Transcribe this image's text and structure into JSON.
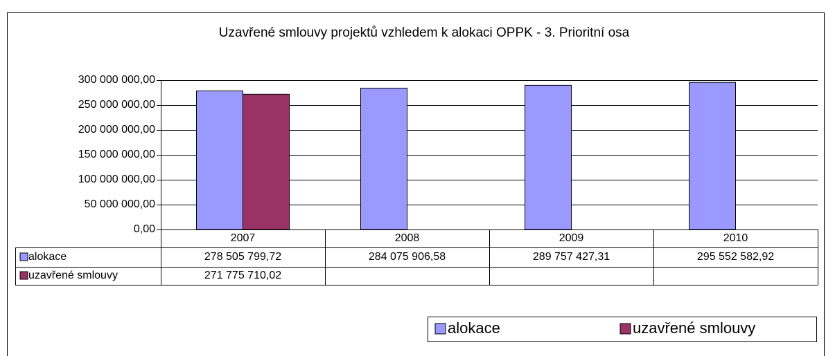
{
  "chart_data": {
    "type": "bar",
    "title": "Uzavřené smlouvy projektů vzhledem k alokaci OPPK - 3. Prioritní osa",
    "categories": [
      "2007",
      "2008",
      "2009",
      "2010"
    ],
    "series": [
      {
        "name": "alokace",
        "color": "#9999ff",
        "values": [
          278505799.72,
          284075906.58,
          289757427.31,
          295552582.92
        ],
        "value_labels": [
          "278 505 799,72",
          "284 075 906,58",
          "289 757 427,31",
          "295 552 582,92"
        ]
      },
      {
        "name": "uzavřené smlouvy",
        "color": "#993366",
        "values": [
          271775710.02,
          null,
          null,
          null
        ],
        "value_labels": [
          "271 775 710,02",
          null,
          null,
          null
        ]
      }
    ],
    "ylim": [
      0,
      300000000
    ],
    "yticks": [
      {
        "value": 0,
        "label": "0,00"
      },
      {
        "value": 50000000,
        "label": "50 000 000,00"
      },
      {
        "value": 100000000,
        "label": "100 000 000,00"
      },
      {
        "value": 150000000,
        "label": "150 000 000,00"
      },
      {
        "value": 200000000,
        "label": "200 000 000,00"
      },
      {
        "value": 250000000,
        "label": "250 000 000,00"
      },
      {
        "value": 300000000,
        "label": "300 000 000,00"
      }
    ],
    "grid": true,
    "legend": "bottom-right",
    "data_table": true
  }
}
